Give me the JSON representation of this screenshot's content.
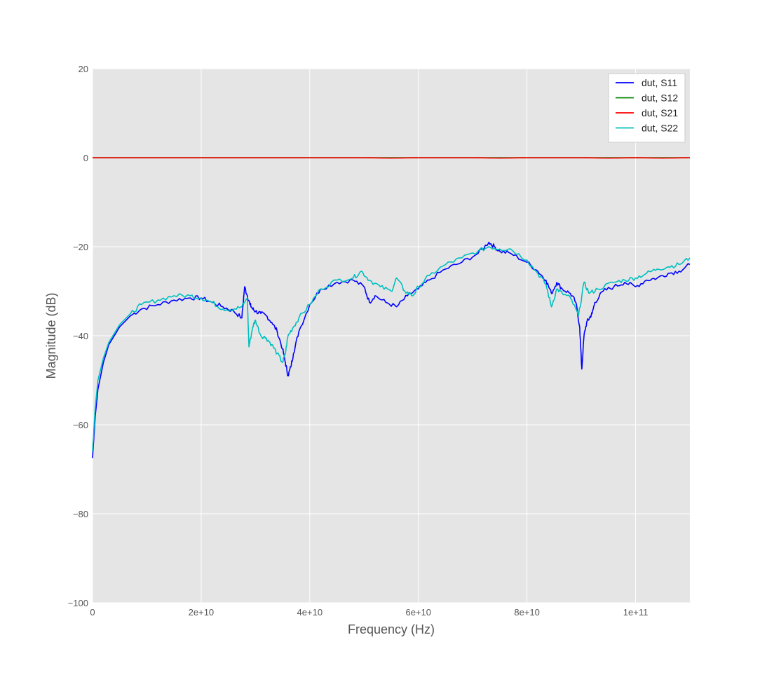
{
  "chart_data": {
    "type": "line",
    "title": "",
    "xlabel": "Frequency (Hz)",
    "ylabel": "Magnitude (dB)",
    "xlim": [
      0,
      110000000000
    ],
    "ylim": [
      -100,
      20
    ],
    "x_ticks": [
      {
        "value": 0,
        "label": "0"
      },
      {
        "value": 20000000000,
        "label": "2e+10"
      },
      {
        "value": 40000000000,
        "label": "4e+10"
      },
      {
        "value": 60000000000,
        "label": "6e+10"
      },
      {
        "value": 80000000000,
        "label": "8e+10"
      },
      {
        "value": 100000000000,
        "label": "1e+11"
      }
    ],
    "y_ticks": [
      {
        "value": 20,
        "label": "20"
      },
      {
        "value": 0,
        "label": "0"
      },
      {
        "value": -20,
        "label": "−20"
      },
      {
        "value": -40,
        "label": "−40"
      },
      {
        "value": -60,
        "label": "−60"
      },
      {
        "value": -80,
        "label": "−80"
      },
      {
        "value": -100,
        "label": "−100"
      }
    ],
    "grid": true,
    "legend_position": "top-right",
    "colors": {
      "plot_background": "#e5e5e5",
      "grid": "#ffffff"
    },
    "series": [
      {
        "name": "dut, S11",
        "color": "#0000ff",
        "x": [
          0,
          500000000,
          1000000000,
          2000000000,
          3000000000,
          5000000000,
          7000000000,
          9000000000,
          12000000000,
          15000000000,
          18000000000,
          20000000000,
          22000000000,
          24000000000,
          26000000000,
          27500000000,
          28000000000,
          28500000000,
          29000000000,
          29500000000,
          30000000000,
          31000000000,
          32000000000,
          33000000000,
          34000000000,
          35000000000,
          35500000000,
          36000000000,
          36500000000,
          37000000000,
          38000000000,
          40000000000,
          42000000000,
          45000000000,
          48000000000,
          50000000000,
          51000000000,
          52000000000,
          54000000000,
          56000000000,
          58000000000,
          60000000000,
          62000000000,
          65000000000,
          68000000000,
          71000000000,
          73000000000,
          74000000000,
          75000000000,
          77000000000,
          80000000000,
          82000000000,
          83500000000,
          84500000000,
          85500000000,
          86500000000,
          88000000000,
          89000000000,
          89700000000,
          90100000000,
          90500000000,
          91000000000,
          91500000000,
          92000000000,
          92500000000,
          94000000000,
          96000000000,
          98000000000,
          100000000000,
          102000000000,
          104000000000,
          106000000000,
          108000000000,
          110000000000
        ],
        "values": [
          -67.5,
          -58,
          -52,
          -46,
          -42,
          -38,
          -35.5,
          -34,
          -33,
          -32,
          -31.5,
          -31.5,
          -32.5,
          -33.5,
          -34.5,
          -36,
          -29,
          -31,
          -33,
          -34,
          -34.5,
          -35,
          -35.5,
          -37,
          -39,
          -43,
          -46,
          -49,
          -47,
          -44,
          -39,
          -33,
          -29.5,
          -28,
          -27.5,
          -29,
          -32.5,
          -31,
          -32.5,
          -33.5,
          -31,
          -29.5,
          -27.5,
          -25,
          -23.5,
          -21.5,
          -19,
          -20,
          -21,
          -21.5,
          -23.5,
          -25.5,
          -27.5,
          -30.5,
          -28,
          -29.5,
          -30.5,
          -32.5,
          -38,
          -47.5,
          -40,
          -37,
          -36,
          -35,
          -32.5,
          -30,
          -29,
          -28,
          -29,
          -27.5,
          -27,
          -26,
          -25.5,
          -24
        ]
      },
      {
        "name": "dut, S12",
        "color": "#008000",
        "x": [
          0,
          110000000000
        ],
        "values": [
          0,
          0
        ]
      },
      {
        "name": "dut, S21",
        "color": "#ff0000",
        "x": [
          0,
          10000000000,
          20000000000,
          30000000000,
          40000000000,
          50000000000,
          55000000000,
          60000000000,
          70000000000,
          75000000000,
          80000000000,
          85000000000,
          90000000000,
          95000000000,
          100000000000,
          105000000000,
          110000000000
        ],
        "values": [
          0,
          0,
          0,
          0,
          0,
          0,
          -0.1,
          0,
          0,
          -0.1,
          0,
          0,
          0,
          -0.1,
          0,
          -0.1,
          0
        ]
      },
      {
        "name": "dut, S22",
        "color": "#00bfbf",
        "x": [
          0,
          500000000,
          1000000000,
          2000000000,
          3000000000,
          5000000000,
          7000000000,
          9000000000,
          12000000000,
          15000000000,
          18000000000,
          20000000000,
          22000000000,
          24000000000,
          26000000000,
          27500000000,
          28500000000,
          28800000000,
          29500000000,
          30000000000,
          31000000000,
          32000000000,
          33000000000,
          34000000000,
          35000000000,
          35500000000,
          36000000000,
          37000000000,
          38000000000,
          40000000000,
          42000000000,
          45000000000,
          48000000000,
          49500000000,
          51000000000,
          53000000000,
          55000000000,
          56000000000,
          57500000000,
          59000000000,
          60000000000,
          62000000000,
          65000000000,
          68000000000,
          71000000000,
          73000000000,
          75000000000,
          77000000000,
          80000000000,
          82000000000,
          83500000000,
          84500000000,
          85500000000,
          86500000000,
          88000000000,
          89500000000,
          90500000000,
          91500000000,
          93000000000,
          96000000000,
          98000000000,
          100000000000,
          102000000000,
          104000000000,
          106000000000,
          108000000000,
          110000000000
        ],
        "values": [
          -66,
          -56,
          -50,
          -45,
          -41.5,
          -37.5,
          -35,
          -33,
          -32,
          -31,
          -31,
          -31.5,
          -32.5,
          -34,
          -34,
          -33.5,
          -31.5,
          -42.5,
          -38,
          -36.5,
          -40,
          -40.5,
          -42,
          -44,
          -46,
          -44,
          -40,
          -38,
          -36,
          -33,
          -29.5,
          -27.5,
          -27,
          -25.5,
          -27.5,
          -29,
          -30,
          -27,
          -30,
          -31,
          -29,
          -26.5,
          -24,
          -22.5,
          -21,
          -20,
          -20.5,
          -20.5,
          -23,
          -26,
          -28.5,
          -33.5,
          -29.5,
          -30.5,
          -31.5,
          -35.5,
          -28,
          -30.5,
          -29.5,
          -28,
          -27.5,
          -27,
          -26,
          -25,
          -24.5,
          -24,
          -22.5
        ]
      }
    ]
  }
}
